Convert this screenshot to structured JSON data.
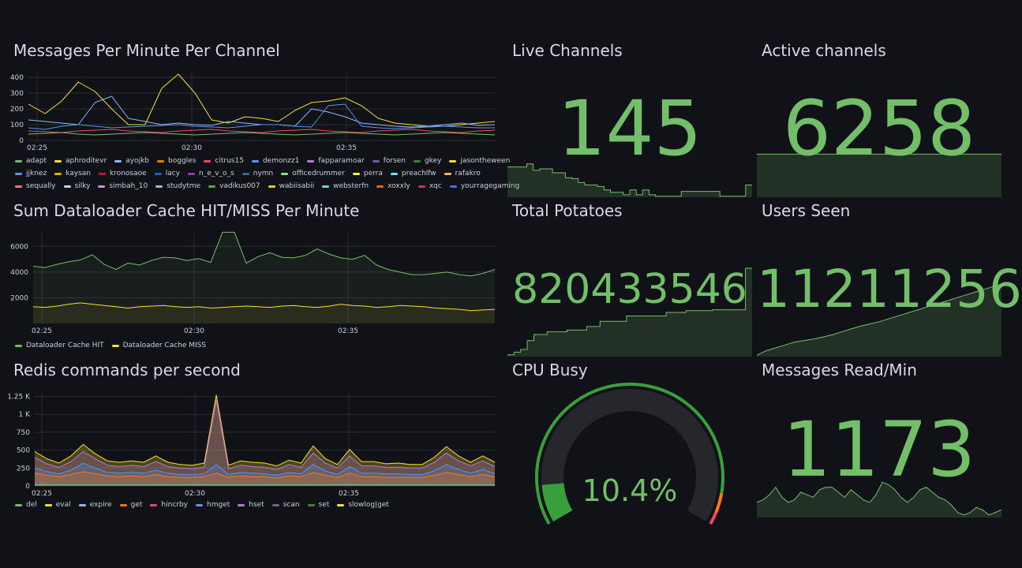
{
  "panels": {
    "messages": {
      "title": "Messages Per Minute Per Channel",
      "legend": [
        {
          "name": "adapt",
          "color": "#73bf69"
        },
        {
          "name": "aphroditevr",
          "color": "#fade2a"
        },
        {
          "name": "ayojkb",
          "color": "#8ab8ff"
        },
        {
          "name": "boggles",
          "color": "#ff780a"
        },
        {
          "name": "citrus15",
          "color": "#f2495c"
        },
        {
          "name": "demonzz1",
          "color": "#5794f2"
        },
        {
          "name": "fapparamoar",
          "color": "#b877d9"
        },
        {
          "name": "forsen",
          "color": "#705da0"
        },
        {
          "name": "gkey",
          "color": "#37872d"
        },
        {
          "name": "jasontheween",
          "color": "#fade2a"
        },
        {
          "name": "jjknez",
          "color": "#5794f2"
        },
        {
          "name": "kaysan",
          "color": "#e0b400"
        },
        {
          "name": "kronosaoe",
          "color": "#c4162a"
        },
        {
          "name": "lacy",
          "color": "#1f60c4"
        },
        {
          "name": "n_e_v_o_s",
          "color": "#8f3bb8"
        },
        {
          "name": "nymn",
          "color": "#3f5f8f"
        },
        {
          "name": "officedrummer",
          "color": "#96d98d"
        },
        {
          "name": "perra",
          "color": "#ffee52"
        },
        {
          "name": "preachlfw",
          "color": "#73e0ff"
        },
        {
          "name": "rafakro",
          "color": "#ffb357"
        },
        {
          "name": "sequally",
          "color": "#ff7383"
        },
        {
          "name": "silky",
          "color": "#c0d8ff"
        },
        {
          "name": "simbah_10",
          "color": "#ca95e5"
        },
        {
          "name": "studytme",
          "color": "#a3b4d6"
        },
        {
          "name": "vadikus007",
          "color": "#56a64b"
        },
        {
          "name": "wabiisabii",
          "color": "#f2cc0c"
        },
        {
          "name": "websterfn",
          "color": "#6cd3d9"
        },
        {
          "name": "xoxxly",
          "color": "#fa6400"
        },
        {
          "name": "xqc",
          "color": "#e02f44"
        },
        {
          "name": "yourragegaming",
          "color": "#3274d9"
        }
      ]
    },
    "cache": {
      "title": "Sum Dataloader Cache HIT/MISS Per Minute",
      "legend": [
        {
          "name": "Dataloader Cache HIT",
          "color": "#73bf69"
        },
        {
          "name": "Dataloader Cache MISS",
          "color": "#fade2a"
        }
      ]
    },
    "redis": {
      "title": "Redis commands per second",
      "legend": [
        {
          "name": "del",
          "color": "#73bf69"
        },
        {
          "name": "eval",
          "color": "#fade2a"
        },
        {
          "name": "expire",
          "color": "#8ab8ff"
        },
        {
          "name": "get",
          "color": "#ff780a"
        },
        {
          "name": "hincrby",
          "color": "#f2495c"
        },
        {
          "name": "hmget",
          "color": "#5794f2"
        },
        {
          "name": "hset",
          "color": "#b877d9"
        },
        {
          "name": "scan",
          "color": "#705da0"
        },
        {
          "name": "set",
          "color": "#37872d"
        },
        {
          "name": "slowlog|get",
          "color": "#fade2a"
        }
      ]
    },
    "live_channels": {
      "title": "Live Channels",
      "value": "145"
    },
    "active_channels": {
      "title": "Active channels",
      "value": "6258"
    },
    "total_potatoes": {
      "title": "Total Potatoes",
      "value": "820433546"
    },
    "users_seen": {
      "title": "Users Seen",
      "value": "11211256"
    },
    "cpu_busy": {
      "title": "CPU Busy",
      "value": "10.4%",
      "percent": 10.4
    },
    "messages_read": {
      "title": "Messages Read/Min",
      "value": "1173"
    }
  },
  "colors": {
    "background": "#111217",
    "accent_green": "#73bf69",
    "gauge_bg": "#25272c",
    "gauge_orange": "#ff780a",
    "gauge_red": "#f2495c"
  },
  "chart_data": [
    {
      "type": "line",
      "title": "Messages Per Minute Per Channel",
      "x_ticks": [
        "02:25",
        "02:30",
        "02:35"
      ],
      "y_ticks": [
        "0",
        "100",
        "200",
        "300",
        "400"
      ],
      "ylim": [
        0,
        430
      ],
      "series": [
        {
          "name": "aphroditevr",
          "values": [
            230,
            170,
            250,
            370,
            310,
            200,
            100,
            100,
            330,
            420,
            300,
            130,
            110,
            150,
            140,
            120,
            190,
            240,
            250,
            270,
            220,
            140,
            110,
            100,
            90,
            90,
            100,
            110,
            120
          ]
        },
        {
          "name": "ayojkb",
          "values": [
            130,
            120,
            110,
            100,
            240,
            280,
            140,
            120,
            100,
            110,
            100,
            95,
            120,
            110,
            100,
            100,
            90,
            200,
            180,
            150,
            110,
            100,
            90,
            85,
            90,
            100,
            110,
            95,
            100
          ]
        },
        {
          "name": "demonzz1",
          "values": [
            80,
            70,
            90,
            100,
            90,
            80,
            85,
            90,
            95,
            100,
            90,
            85,
            80,
            90,
            100,
            100,
            90,
            85,
            220,
            230,
            90,
            80,
            75,
            80,
            85,
            90,
            85,
            80,
            80
          ]
        },
        {
          "name": "citrus15",
          "values": [
            60,
            55,
            50,
            60,
            65,
            70,
            60,
            55,
            50,
            60,
            65,
            70,
            60,
            55,
            50,
            60,
            65,
            70,
            60,
            55,
            50,
            60,
            65,
            70,
            60,
            55,
            50,
            60,
            65
          ]
        },
        {
          "name": "adapt",
          "values": [
            40,
            45,
            50,
            40,
            35,
            40,
            45,
            50,
            45,
            40,
            35,
            40,
            45,
            50,
            45,
            40,
            35,
            40,
            45,
            50,
            45,
            40,
            35,
            40,
            45,
            50,
            45,
            40,
            35
          ]
        }
      ]
    },
    {
      "type": "area",
      "title": "Sum Dataloader Cache HIT/MISS Per Minute",
      "x_ticks": [
        "02:25",
        "02:30",
        "02:35"
      ],
      "y_ticks": [
        "2000",
        "4000",
        "6000"
      ],
      "ylim": [
        0,
        7000
      ],
      "series": [
        {
          "name": "Dataloader Cache HIT",
          "values": [
            4450,
            4350,
            4600,
            4800,
            4950,
            5350,
            4600,
            4200,
            4700,
            4550,
            4900,
            5150,
            5100,
            4900,
            5050,
            4750,
            7100,
            7100,
            4700,
            5200,
            5500,
            5150,
            5100,
            5300,
            5800,
            5400,
            5100,
            5000,
            5300,
            4550,
            4200,
            4000,
            3800,
            3800,
            3900,
            4000,
            3800,
            3700,
            3900,
            4200
          ]
        },
        {
          "name": "Dataloader Cache MISS",
          "values": [
            1300,
            1250,
            1350,
            1500,
            1600,
            1500,
            1400,
            1300,
            1200,
            1300,
            1350,
            1400,
            1300,
            1250,
            1300,
            1200,
            1250,
            1300,
            1350,
            1300,
            1250,
            1350,
            1400,
            1300,
            1250,
            1350,
            1500,
            1400,
            1350,
            1250,
            1300,
            1400,
            1350,
            1300,
            1200,
            1150,
            1100,
            1000,
            1050,
            1100
          ]
        }
      ]
    },
    {
      "type": "area",
      "title": "Redis commands per second",
      "x_ticks": [
        "02:25",
        "02:30",
        "02:35"
      ],
      "y_ticks": [
        "0",
        "250",
        "500",
        "750",
        "1 K",
        "1.25 K"
      ],
      "ylim": [
        0,
        1300
      ],
      "series": [
        {
          "name": "slowlog|get",
          "values": [
            480,
            380,
            320,
            420,
            580,
            450,
            350,
            330,
            350,
            330,
            420,
            330,
            300,
            290,
            320,
            1270,
            290,
            350,
            330,
            320,
            280,
            360,
            320,
            560,
            380,
            300,
            510,
            340,
            340,
            310,
            320,
            300,
            300,
            400,
            550,
            420,
            330,
            420,
            330
          ]
        },
        {
          "name": "hset",
          "values": [
            400,
            310,
            260,
            340,
            480,
            380,
            290,
            270,
            290,
            270,
            340,
            270,
            250,
            240,
            260,
            1200,
            240,
            290,
            270,
            260,
            230,
            300,
            260,
            460,
            320,
            250,
            420,
            280,
            280,
            260,
            260,
            250,
            250,
            330,
            460,
            350,
            280,
            350,
            270
          ]
        },
        {
          "name": "hmget",
          "values": [
            250,
            200,
            170,
            220,
            320,
            250,
            190,
            180,
            190,
            180,
            220,
            180,
            160,
            160,
            170,
            300,
            160,
            190,
            180,
            170,
            150,
            190,
            170,
            300,
            210,
            160,
            270,
            180,
            180,
            170,
            170,
            160,
            160,
            210,
            300,
            230,
            180,
            230,
            170
          ]
        },
        {
          "name": "get",
          "values": [
            180,
            150,
            130,
            160,
            200,
            170,
            140,
            130,
            140,
            130,
            160,
            130,
            120,
            120,
            130,
            180,
            120,
            140,
            130,
            130,
            110,
            140,
            130,
            190,
            150,
            120,
            180,
            130,
            130,
            120,
            120,
            120,
            120,
            150,
            190,
            160,
            130,
            160,
            130
          ]
        },
        {
          "name": "del",
          "values": [
            20,
            20,
            20,
            20,
            20,
            20,
            20,
            20,
            20,
            20,
            20,
            20,
            20,
            20,
            20,
            20,
            20,
            20,
            20,
            20,
            20,
            20,
            20,
            20,
            20,
            20,
            20,
            20,
            20,
            20,
            20,
            20,
            20,
            20,
            20,
            20,
            20,
            20,
            20
          ]
        }
      ]
    },
    {
      "type": "area",
      "title": "Live Channels",
      "values": [
        0.62,
        0.62,
        0.62,
        0.68,
        0.55,
        0.58,
        0.58,
        0.5,
        0.5,
        0.4,
        0.38,
        0.3,
        0.25,
        0.25,
        0.22,
        0.15,
        0.1,
        0.1,
        0.05,
        0.15,
        0.05,
        0.15,
        0.05,
        0.02,
        0.02,
        0.02,
        0.02,
        0.12,
        0.12,
        0.12,
        0.12,
        0.12,
        0.12,
        0.02,
        0.02,
        0.02,
        0.02,
        0.25,
        0.25
      ]
    },
    {
      "type": "area",
      "title": "Active channels",
      "values": [
        0.88,
        0.88,
        0.88,
        0.88
      ]
    },
    {
      "type": "area",
      "title": "Total Potatoes",
      "values": [
        0.02,
        0.05,
        0.08,
        0.18,
        0.25,
        0.25,
        0.28,
        0.28,
        0.28,
        0.3,
        0.3,
        0.3,
        0.34,
        0.34,
        0.4,
        0.4,
        0.4,
        0.4,
        0.46,
        0.46,
        0.46,
        0.46,
        0.46,
        0.46,
        0.5,
        0.5,
        0.5,
        0.52,
        0.52,
        0.52,
        0.52,
        0.53,
        0.53,
        0.53,
        0.53,
        0.53,
        1.0,
        1.0
      ]
    },
    {
      "type": "area",
      "title": "Users Seen",
      "values": [
        0.02,
        0.08,
        0.12,
        0.16,
        0.2,
        0.22,
        0.24,
        0.27,
        0.3,
        0.34,
        0.38,
        0.42,
        0.45,
        0.48,
        0.52,
        0.56,
        0.6,
        0.64,
        0.68,
        0.72,
        0.76,
        0.8,
        0.84,
        0.88,
        0.92,
        0.96,
        1.0
      ]
    },
    {
      "type": "area",
      "title": "Messages Read/Min",
      "values": [
        0.3,
        0.35,
        0.45,
        0.6,
        0.4,
        0.3,
        0.35,
        0.5,
        0.45,
        0.4,
        0.55,
        0.6,
        0.6,
        0.5,
        0.4,
        0.55,
        0.45,
        0.35,
        0.3,
        0.45,
        0.7,
        0.65,
        0.55,
        0.4,
        0.3,
        0.4,
        0.55,
        0.6,
        0.5,
        0.4,
        0.35,
        0.25,
        0.1,
        0.05,
        0.1,
        0.2,
        0.15,
        0.05,
        0.1,
        0.15
      ]
    }
  ]
}
